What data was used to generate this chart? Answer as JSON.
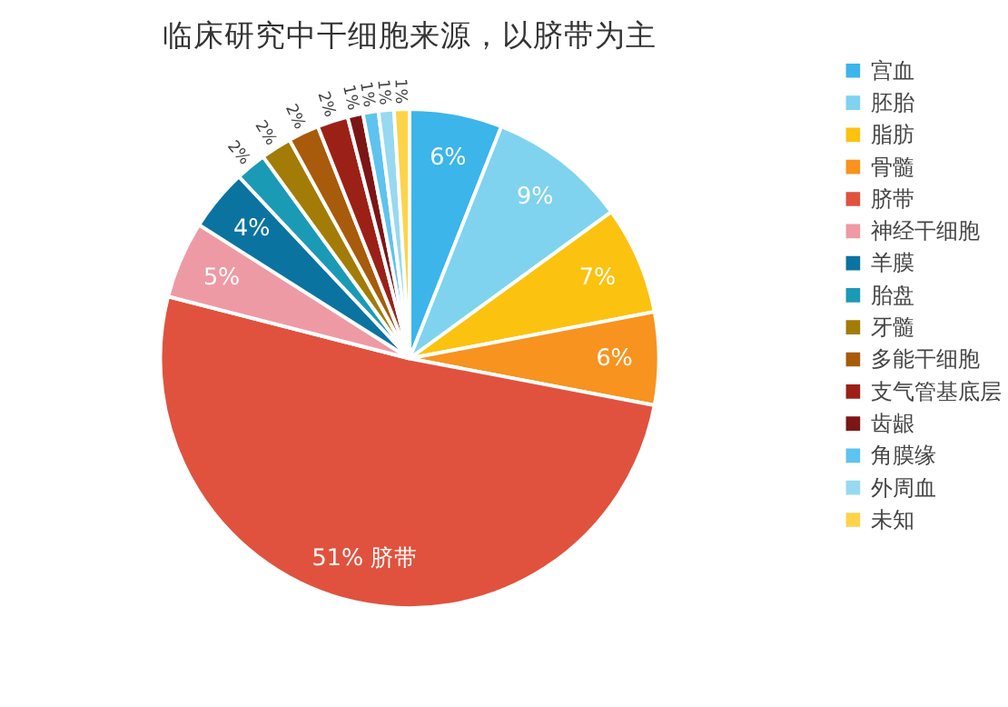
{
  "chart_data": {
    "type": "pie",
    "title": "临床研究中干细胞来源，以脐带为主",
    "categories": [
      "宫血",
      "胚胎",
      "脂肪",
      "骨髓",
      "脐带",
      "神经干细胞",
      "羊膜",
      "胎盘",
      "牙髓",
      "多能干细胞",
      "支气管基底层",
      "齿龈",
      "角膜缘",
      "外周血",
      "未知"
    ],
    "values": [
      6,
      9,
      7,
      6,
      51,
      5,
      4,
      2,
      2,
      2,
      2,
      1,
      1,
      1,
      1
    ],
    "colors": [
      "#3bb5ea",
      "#7fd3ee",
      "#fbc30f",
      "#f7931e",
      "#e0523e",
      "#ee9aa5",
      "#0b73a0",
      "#1b9ab6",
      "#a27c06",
      "#a85b0a",
      "#9b2117",
      "#7c1616",
      "#5ec3ee",
      "#97d9f0",
      "#fdd34a"
    ],
    "value_labels": [
      "6%",
      "9%",
      "7%",
      "6%",
      "51% 脐带",
      "5%",
      "4%",
      "2%",
      "2%",
      "2%",
      "2%",
      "1%",
      "1%",
      "1%",
      "1%"
    ],
    "legend": "right"
  }
}
